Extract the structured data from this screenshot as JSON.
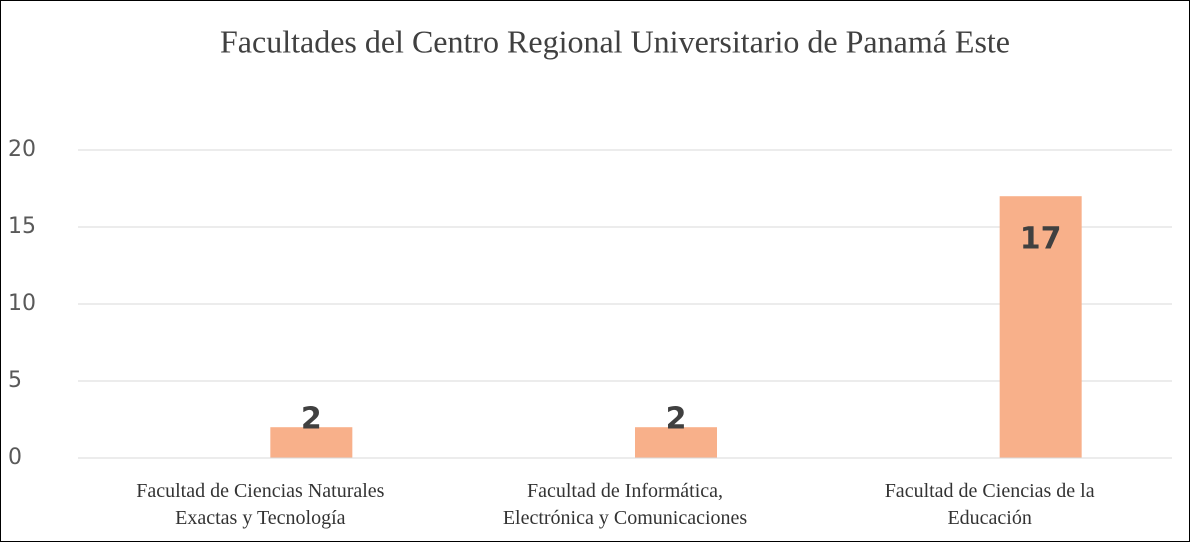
{
  "chart_data": {
    "type": "bar",
    "title": "Facultades del Centro Regional Universitario de Panamá Este",
    "categories": [
      "Facultad de Ciencias Naturales\nExactas y Tecnología",
      "Facultad de Informática,\nElectrónica y Comunicaciones",
      "Facultad de Ciencias de la\nEducación"
    ],
    "values": [
      2,
      2,
      17
    ],
    "color": "#f8b08a",
    "ylim": [
      0,
      20
    ],
    "yticks": [
      0,
      5,
      10,
      15,
      20
    ],
    "grid": true
  }
}
